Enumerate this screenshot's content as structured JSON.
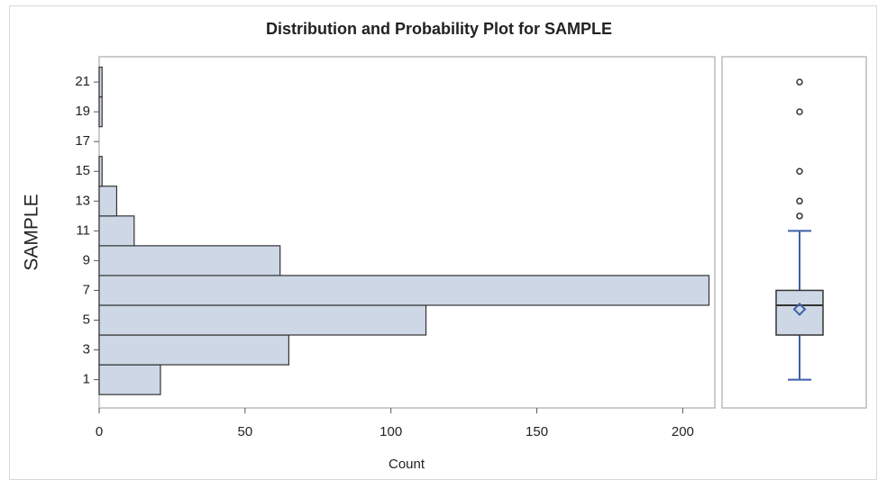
{
  "chart_data": [
    {
      "type": "histogram",
      "orientation": "horizontal",
      "title": "Distribution and Probability Plot for SAMPLE",
      "ylabel": "SAMPLE",
      "xlabel": "Count",
      "bins": [
        0,
        2,
        4,
        6,
        8,
        10,
        12,
        14,
        16,
        18,
        20,
        22
      ],
      "values": [
        21,
        65,
        112,
        209,
        62,
        12,
        6,
        1,
        0,
        1,
        1
      ],
      "color": "#cdd7e6",
      "xlim": [
        0,
        211
      ],
      "xticks": [
        0,
        50,
        100,
        150,
        200
      ],
      "ylim": [
        -0.9,
        22.7
      ],
      "yticks": [
        1,
        3,
        5,
        7,
        9,
        11,
        13,
        15,
        17,
        19,
        21
      ]
    },
    {
      "type": "box",
      "whisker_low": 1,
      "q1": 4,
      "median": 6,
      "q3": 7,
      "whisker_high": 11,
      "mean": 5.73,
      "outliers": [
        12,
        13,
        15,
        19,
        21
      ],
      "color": "#3f5fa8",
      "fill": "#cdd7e6",
      "ylim": [
        -0.9,
        22.7
      ]
    }
  ]
}
